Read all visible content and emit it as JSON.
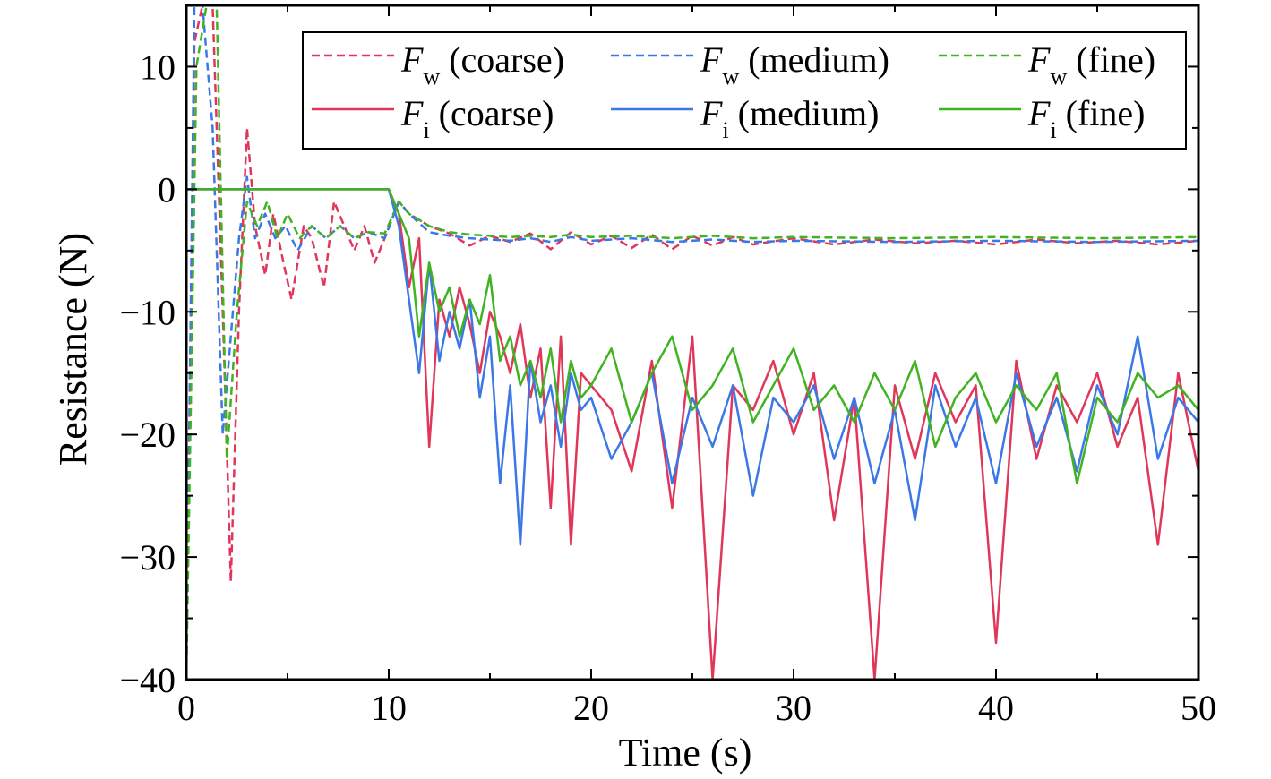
{
  "chart_data": {
    "type": "line",
    "xlabel": "Time (s)",
    "ylabel": "Resistance (N)",
    "xlim": [
      0,
      50
    ],
    "ylim": [
      -40,
      15
    ],
    "x_ticks": [
      0,
      10,
      20,
      30,
      40,
      50
    ],
    "y_ticks": [
      -40,
      -30,
      -20,
      -10,
      0,
      10
    ],
    "x_tick_labels": [
      "0",
      "10",
      "20",
      "30",
      "40",
      "50"
    ],
    "y_tick_labels": [
      "−40",
      "−30",
      "−20",
      "−10",
      "0",
      "10"
    ],
    "grid": false,
    "legend_position": "top-right",
    "series": [
      {
        "name": "F_w (coarse)",
        "symbol": "F",
        "sub": "w",
        "label": "(coarse)",
        "color": "#e0365a",
        "dash": true,
        "x": [
          0,
          0.4,
          0.8,
          1.3,
          1.8,
          2.2,
          2.6,
          3.0,
          3.4,
          3.9,
          4.3,
          4.8,
          5.2,
          5.8,
          6.2,
          6.8,
          7.3,
          7.8,
          8.3,
          8.8,
          9.3,
          9.8,
          10.5,
          11.0,
          12.0,
          13.0,
          14.0,
          15.0,
          16.0,
          17.0,
          18.0,
          19.0,
          20.0,
          21.0,
          22.0,
          23.0,
          24.0,
          25.0,
          26.0,
          27.0,
          28.0,
          30.0,
          32.0,
          34.0,
          36.0,
          38.0,
          40.0,
          42.0,
          44.0,
          46.0,
          48.0,
          50.0
        ],
        "y": [
          -38,
          12,
          15,
          15,
          -10,
          -32,
          -10,
          5,
          -3,
          -7,
          -2,
          -6,
          -9,
          -3,
          -4,
          -8,
          -1,
          -3,
          -5,
          -3,
          -6,
          -4,
          -1,
          -2,
          -3,
          -3.6,
          -4.6,
          -3.8,
          -4.3,
          -3.6,
          -4.9,
          -3.5,
          -4.5,
          -3.8,
          -4.8,
          -3.7,
          -4.9,
          -3.8,
          -4.6,
          -3.9,
          -4.5,
          -4.0,
          -4.5,
          -4.1,
          -4.4,
          -4.2,
          -4.5,
          -4.1,
          -4.4,
          -4.2,
          -4.5,
          -4.2
        ]
      },
      {
        "name": "F_w (medium)",
        "symbol": "F",
        "sub": "w",
        "label": "(medium)",
        "color": "#3b78e7",
        "dash": true,
        "x": [
          0,
          0.4,
          0.8,
          1.3,
          1.8,
          2.2,
          2.6,
          3.0,
          3.4,
          3.9,
          4.4,
          4.9,
          5.5,
          6.2,
          6.9,
          7.6,
          8.3,
          9.0,
          9.8,
          10.5,
          11.0,
          12.0,
          13.0,
          14.0,
          15.0,
          16.0,
          17.0,
          18.0,
          19.0,
          20.0,
          22.0,
          24.0,
          26.0,
          28.0,
          30.0,
          35.0,
          40.0,
          45.0,
          50.0
        ],
        "y": [
          -40,
          15,
          15,
          5,
          -20,
          -12,
          -4,
          1,
          -4,
          -2,
          -4,
          -3,
          -5,
          -3,
          -4,
          -3,
          -4,
          -3.5,
          -4,
          -1,
          -2,
          -3.5,
          -3.8,
          -4,
          -4.1,
          -4.2,
          -4.0,
          -4.3,
          -3.9,
          -4.2,
          -4.0,
          -4.3,
          -4.1,
          -4.3,
          -4.2,
          -4.3,
          -4.2,
          -4.3,
          -4.2
        ]
      },
      {
        "name": "F_w (fine)",
        "symbol": "F",
        "sub": "w",
        "label": "(fine)",
        "color": "#3fb320",
        "dash": true,
        "x": [
          0,
          0.5,
          1.0,
          1.5,
          2.0,
          2.5,
          3.0,
          3.5,
          4.0,
          4.5,
          5.0,
          5.6,
          6.2,
          6.9,
          7.6,
          8.3,
          9.0,
          9.8,
          10.5,
          11.0,
          12.0,
          13.0,
          14.0,
          15.0,
          16.0,
          17.0,
          18.0,
          19.0,
          20.0,
          22.0,
          24.0,
          26.0,
          28.0,
          30.0,
          35.0,
          40.0,
          45.0,
          50.0
        ],
        "y": [
          -40,
          10,
          15,
          15,
          -22,
          -10,
          -1,
          -3,
          -1,
          -4,
          -2,
          -4,
          -3,
          -4,
          -3,
          -4,
          -3.5,
          -3.6,
          -1,
          -2,
          -3.0,
          -3.5,
          -3.7,
          -3.8,
          -3.9,
          -3.8,
          -3.9,
          -3.7,
          -3.9,
          -3.8,
          -4.0,
          -3.8,
          -4.0,
          -3.9,
          -4.0,
          -3.9,
          -4.0,
          -3.9
        ]
      },
      {
        "name": "F_i (coarse)",
        "symbol": "F",
        "sub": "i",
        "label": "(coarse)",
        "color": "#e0365a",
        "dash": false,
        "x": [
          0,
          10,
          10.5,
          11,
          11.5,
          12,
          12.5,
          13,
          13.5,
          14,
          14.5,
          15,
          15.5,
          16,
          16.5,
          17,
          17.5,
          18,
          18.5,
          19,
          19.5,
          20,
          21,
          22,
          23,
          24,
          25,
          26,
          27,
          28,
          29,
          30,
          31,
          32,
          33,
          34,
          35,
          36,
          37,
          38,
          39,
          40,
          41,
          42,
          43,
          44,
          45,
          46,
          47,
          48,
          49,
          50
        ],
        "y": [
          0,
          0,
          -2,
          -8,
          -4,
          -21,
          -9,
          -12,
          -8,
          -11,
          -15,
          -10,
          -12,
          -15,
          -11,
          -17,
          -13,
          -26,
          -12,
          -29,
          -15,
          -16,
          -18,
          -23,
          -14,
          -26,
          -12,
          -40,
          -16,
          -18,
          -14,
          -20,
          -15,
          -27,
          -17,
          -40,
          -16,
          -22,
          -15,
          -19,
          -16,
          -37,
          -14,
          -22,
          -16,
          -19,
          -15,
          -21,
          -17,
          -29,
          -15,
          -23
        ]
      },
      {
        "name": "F_i (medium)",
        "symbol": "F",
        "sub": "i",
        "label": "(medium)",
        "color": "#3b78e7",
        "dash": false,
        "x": [
          0,
          10,
          10.5,
          11,
          11.5,
          12,
          12.5,
          13,
          13.5,
          14,
          14.5,
          15,
          15.5,
          16,
          16.5,
          17,
          17.5,
          18,
          18.5,
          19,
          19.5,
          20,
          21,
          22,
          23,
          24,
          25,
          26,
          27,
          28,
          29,
          30,
          31,
          32,
          33,
          34,
          35,
          36,
          37,
          38,
          39,
          40,
          41,
          42,
          43,
          44,
          45,
          46,
          47,
          48,
          49,
          50
        ],
        "y": [
          0,
          0,
          -3,
          -9,
          -15,
          -6,
          -14,
          -10,
          -13,
          -9,
          -17,
          -12,
          -24,
          -16,
          -29,
          -14,
          -19,
          -16,
          -21,
          -15,
          -18,
          -17,
          -22,
          -19,
          -15,
          -24,
          -17,
          -21,
          -16,
          -25,
          -17,
          -19,
          -16,
          -22,
          -17,
          -24,
          -18,
          -27,
          -16,
          -21,
          -17,
          -24,
          -15,
          -21,
          -17,
          -23,
          -16,
          -20,
          -12,
          -22,
          -17,
          -19
        ]
      },
      {
        "name": "F_i (fine)",
        "symbol": "F",
        "sub": "i",
        "label": "(fine)",
        "color": "#3fb320",
        "dash": false,
        "x": [
          0,
          10,
          10.5,
          11,
          11.5,
          12,
          12.5,
          13,
          13.5,
          14,
          14.5,
          15,
          15.5,
          16,
          16.5,
          17,
          17.5,
          18,
          18.5,
          19,
          19.5,
          20,
          21,
          22,
          23,
          24,
          25,
          26,
          27,
          28,
          29,
          30,
          31,
          32,
          33,
          34,
          35,
          36,
          37,
          38,
          39,
          40,
          41,
          42,
          43,
          44,
          45,
          46,
          47,
          48,
          49,
          50
        ],
        "y": [
          0,
          0,
          -2,
          -4,
          -12,
          -6,
          -10,
          -8,
          -12,
          -9,
          -11,
          -7,
          -14,
          -12,
          -16,
          -14,
          -17,
          -13,
          -19,
          -14,
          -17,
          -16,
          -13,
          -19,
          -15,
          -12,
          -18,
          -16,
          -13,
          -19,
          -16,
          -13,
          -18,
          -16,
          -19,
          -15,
          -18,
          -14,
          -21,
          -17,
          -15,
          -19,
          -16,
          -18,
          -15,
          -24,
          -17,
          -19,
          -15,
          -17,
          -16,
          -18
        ]
      }
    ]
  }
}
